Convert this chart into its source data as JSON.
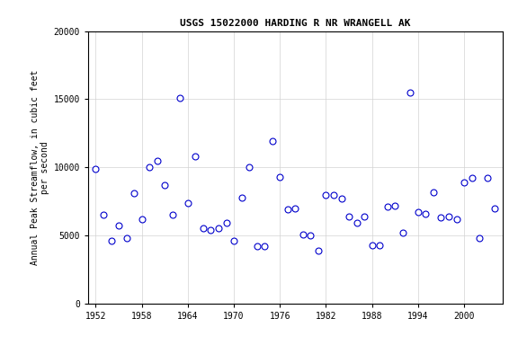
{
  "title": "USGS 15022000 HARDING R NR WRANGELL AK",
  "xlabel": "",
  "ylabel": "Annual Peak Streamflow, in cubic feet\nper second",
  "xlim": [
    1951,
    2005
  ],
  "ylim": [
    0,
    20000
  ],
  "xticks": [
    1952,
    1958,
    1964,
    1970,
    1976,
    1982,
    1988,
    1994,
    2000
  ],
  "yticks": [
    0,
    5000,
    10000,
    15000,
    20000
  ],
  "marker_color": "#0000cc",
  "marker_facecolor": "white",
  "marker_size": 5,
  "grid": true,
  "data": [
    [
      1952,
      9900
    ],
    [
      1953,
      6500
    ],
    [
      1954,
      4600
    ],
    [
      1955,
      5700
    ],
    [
      1956,
      4800
    ],
    [
      1957,
      8100
    ],
    [
      1958,
      6200
    ],
    [
      1959,
      10000
    ],
    [
      1960,
      10500
    ],
    [
      1961,
      8700
    ],
    [
      1962,
      6500
    ],
    [
      1963,
      15100
    ],
    [
      1964,
      7400
    ],
    [
      1965,
      10800
    ],
    [
      1966,
      5500
    ],
    [
      1967,
      5400
    ],
    [
      1968,
      5500
    ],
    [
      1969,
      5900
    ],
    [
      1970,
      4600
    ],
    [
      1971,
      7800
    ],
    [
      1972,
      10000
    ],
    [
      1973,
      4200
    ],
    [
      1974,
      4200
    ],
    [
      1975,
      11900
    ],
    [
      1976,
      9300
    ],
    [
      1977,
      6900
    ],
    [
      1978,
      7000
    ],
    [
      1979,
      5100
    ],
    [
      1980,
      5000
    ],
    [
      1981,
      3900
    ],
    [
      1982,
      8000
    ],
    [
      1983,
      8000
    ],
    [
      1984,
      7700
    ],
    [
      1985,
      6400
    ],
    [
      1986,
      5900
    ],
    [
      1987,
      6400
    ],
    [
      1988,
      4300
    ],
    [
      1989,
      4300
    ],
    [
      1990,
      7100
    ],
    [
      1991,
      7200
    ],
    [
      1992,
      5200
    ],
    [
      1993,
      15500
    ],
    [
      1994,
      6700
    ],
    [
      1995,
      6600
    ],
    [
      1996,
      8200
    ],
    [
      1997,
      6300
    ],
    [
      1998,
      6400
    ],
    [
      1999,
      6200
    ],
    [
      2000,
      8900
    ],
    [
      2001,
      9200
    ],
    [
      2002,
      4800
    ],
    [
      2003,
      9200
    ],
    [
      2004,
      7000
    ]
  ]
}
